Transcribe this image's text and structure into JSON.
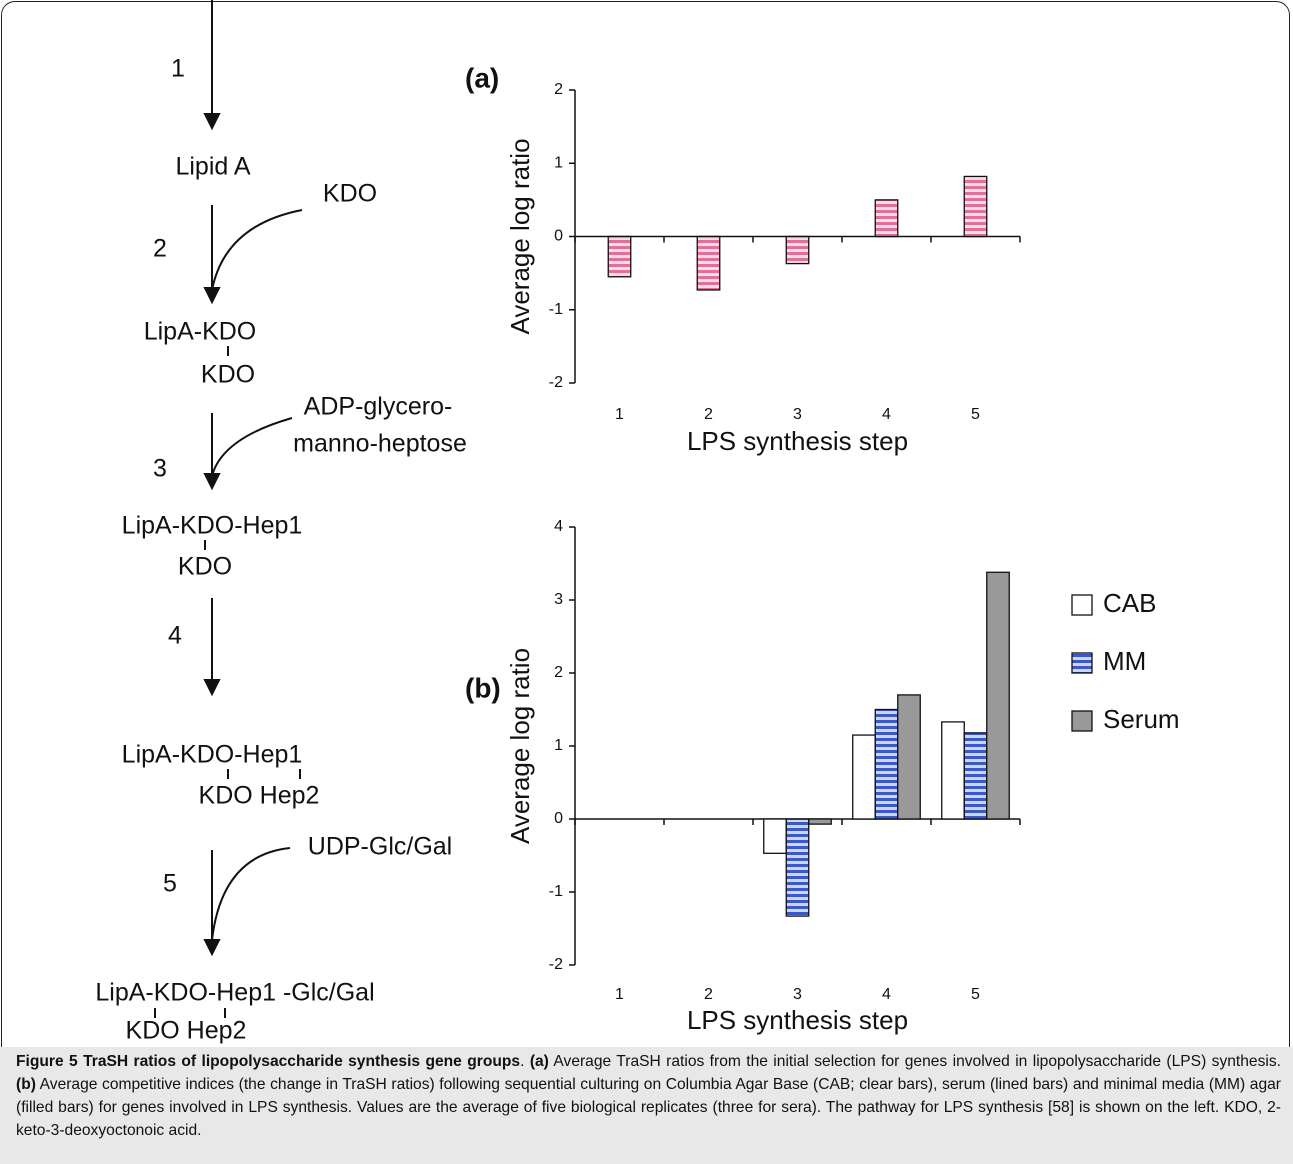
{
  "diagram": {
    "steps": [
      "1",
      "2",
      "3",
      "4",
      "5"
    ],
    "products": [
      {
        "main": "Lipid A"
      },
      {
        "main": "LipA-KDO",
        "branch": "KDO"
      },
      {
        "main": "LipA-KDO-Hep1",
        "branch": "KDO"
      },
      {
        "main": "LipA-KDO-Hep1",
        "branch": "KDO Hep2"
      },
      {
        "main": "LipA-KDO-Hep1 -Glc/Gal",
        "branch": "KDO Hep2"
      }
    ],
    "substrates": [
      {
        "lines": [
          "KDO"
        ]
      },
      {
        "lines": [
          "ADP-glycero-",
          "manno-heptose"
        ]
      },
      {
        "lines": [
          "UDP-Glc/Gal"
        ]
      }
    ]
  },
  "chart_data": [
    {
      "type": "bar",
      "panel": "(a)",
      "y_label": "Average log ratio",
      "x_label": "LPS synthesis step",
      "categories": [
        "1",
        "2",
        "3",
        "4",
        "5"
      ],
      "values": [
        -0.55,
        -0.73,
        -0.37,
        0.5,
        0.82
      ],
      "color": "#e0709a",
      "ylim": [
        -2,
        2
      ],
      "yticks": [
        -2,
        -1,
        0,
        1,
        2
      ]
    },
    {
      "type": "bar",
      "panel": "(b)",
      "y_label": "Average log ratio",
      "x_label": "LPS synthesis step",
      "categories": [
        "1",
        "2",
        "3",
        "4",
        "5"
      ],
      "series": [
        {
          "name": "CAB",
          "color": "#ffffff",
          "values": [
            0,
            0,
            -0.47,
            1.15,
            1.33
          ]
        },
        {
          "name": "MM",
          "color": "#3a58c8",
          "values": [
            0,
            0,
            -1.33,
            1.5,
            1.18
          ]
        },
        {
          "name": "Serum",
          "color": "#999999",
          "values": [
            0,
            0,
            -0.07,
            1.7,
            3.38
          ]
        }
      ],
      "ylim": [
        -2,
        4
      ],
      "yticks": [
        -2,
        -1,
        0,
        1,
        2,
        3,
        4
      ],
      "legend": "right"
    }
  ],
  "caption": {
    "runs": [
      {
        "text": "Figure 5 TraSH ratios of lipopolysaccharide synthesis gene groups",
        "bold": true
      },
      {
        "text": ". ",
        "bold": false
      },
      {
        "text": "(a)",
        "bold": true
      },
      {
        "text": " Average TraSH ratios from the initial selection for genes involved in lipopolysaccharide (LPS) synthesis. ",
        "bold": false
      },
      {
        "text": "(b)",
        "bold": true
      },
      {
        "text": " Average competitive indices (the change in TraSH ratios) following sequential culturing on Columbia Agar Base (CAB; clear bars), serum (lined bars) and minimal media (MM) agar (filled bars) for genes involved in LPS synthesis. Values are the average of five biological replicates (three for sera). The pathway for LPS synthesis [58] is shown on the left. KDO, 2-keto-3-deoxyoctonoic acid.",
        "bold": false
      }
    ]
  }
}
